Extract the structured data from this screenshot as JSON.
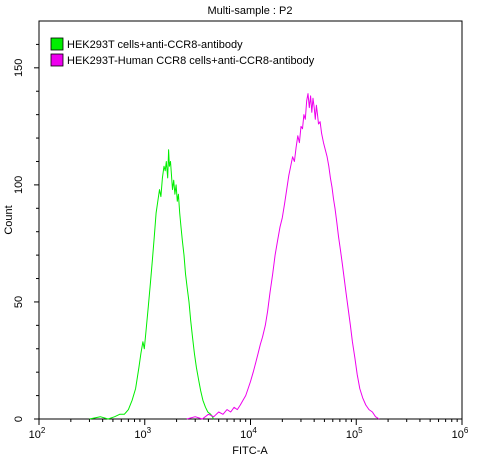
{
  "chart_data": {
    "type": "line",
    "title": "Multi-sample : P2",
    "xlabel": "FITC-A",
    "ylabel": "Count",
    "x_scale": "log",
    "xlim": [
      100,
      1000000
    ],
    "ylim": [
      0,
      170
    ],
    "grid": false,
    "legend_position": "top-left",
    "x_ticks": [
      {
        "value": 100,
        "base": "10",
        "exp": "2"
      },
      {
        "value": 1000,
        "base": "10",
        "exp": "3"
      },
      {
        "value": 10000,
        "base": "10",
        "exp": "4"
      },
      {
        "value": 100000,
        "base": "10",
        "exp": "5"
      },
      {
        "value": 1000000,
        "base": "10",
        "exp": "6"
      }
    ],
    "y_ticks": [
      0,
      50,
      100,
      150
    ],
    "series": [
      {
        "name": "HEK293T cells+anti-CCR8-antibody",
        "color": "#00ee00",
        "points": [
          [
            300,
            0
          ],
          [
            380,
            1
          ],
          [
            450,
            0
          ],
          [
            520,
            1
          ],
          [
            580,
            2
          ],
          [
            640,
            2
          ],
          [
            700,
            4
          ],
          [
            760,
            8
          ],
          [
            820,
            13
          ],
          [
            880,
            22
          ],
          [
            920,
            28
          ],
          [
            960,
            33
          ],
          [
            990,
            30
          ],
          [
            1030,
            38
          ],
          [
            1080,
            48
          ],
          [
            1130,
            58
          ],
          [
            1180,
            68
          ],
          [
            1230,
            78
          ],
          [
            1280,
            88
          ],
          [
            1330,
            93
          ],
          [
            1380,
            98
          ],
          [
            1420,
            95
          ],
          [
            1470,
            103
          ],
          [
            1520,
            108
          ],
          [
            1560,
            106
          ],
          [
            1600,
            110
          ],
          [
            1650,
            103
          ],
          [
            1680,
            115
          ],
          [
            1710,
            108
          ],
          [
            1750,
            110
          ],
          [
            1790,
            104
          ],
          [
            1830,
            98
          ],
          [
            1880,
            102
          ],
          [
            1930,
            96
          ],
          [
            1980,
            100
          ],
          [
            2030,
            93
          ],
          [
            2080,
            96
          ],
          [
            2140,
            88
          ],
          [
            2200,
            82
          ],
          [
            2270,
            76
          ],
          [
            2350,
            70
          ],
          [
            2430,
            62
          ],
          [
            2520,
            56
          ],
          [
            2620,
            50
          ],
          [
            2720,
            42
          ],
          [
            2830,
            35
          ],
          [
            2950,
            28
          ],
          [
            3080,
            22
          ],
          [
            3220,
            17
          ],
          [
            3380,
            12
          ],
          [
            3550,
            8
          ],
          [
            3750,
            5
          ],
          [
            3950,
            3
          ],
          [
            4200,
            2
          ],
          [
            4500,
            0
          ]
        ]
      },
      {
        "name": "HEK293T-Human CCR8 cells+anti-CCR8-antibody",
        "color": "#ee00ee",
        "points": [
          [
            2500,
            0
          ],
          [
            3000,
            1
          ],
          [
            3500,
            0
          ],
          [
            4000,
            2
          ],
          [
            4500,
            1
          ],
          [
            5000,
            3
          ],
          [
            5500,
            2
          ],
          [
            6000,
            4
          ],
          [
            6500,
            3
          ],
          [
            7000,
            5
          ],
          [
            7500,
            4
          ],
          [
            8000,
            6
          ],
          [
            8500,
            8
          ],
          [
            9000,
            10
          ],
          [
            9500,
            13
          ],
          [
            10000,
            16
          ],
          [
            10600,
            20
          ],
          [
            11200,
            24
          ],
          [
            11800,
            28
          ],
          [
            12400,
            32
          ],
          [
            13000,
            35
          ],
          [
            13800,
            40
          ],
          [
            14500,
            46
          ],
          [
            15300,
            54
          ],
          [
            16200,
            62
          ],
          [
            17100,
            70
          ],
          [
            18000,
            76
          ],
          [
            19000,
            82
          ],
          [
            20000,
            86
          ],
          [
            21000,
            92
          ],
          [
            22000,
            98
          ],
          [
            23000,
            104
          ],
          [
            24000,
            108
          ],
          [
            25000,
            112
          ],
          [
            26000,
            110
          ],
          [
            27000,
            116
          ],
          [
            28000,
            121
          ],
          [
            29000,
            118
          ],
          [
            30000,
            125
          ],
          [
            31000,
            124
          ],
          [
            32000,
            130
          ],
          [
            33000,
            128
          ],
          [
            34000,
            136
          ],
          [
            35000,
            139
          ],
          [
            36000,
            133
          ],
          [
            37000,
            138
          ],
          [
            38000,
            131
          ],
          [
            39000,
            137
          ],
          [
            40000,
            133
          ],
          [
            41000,
            128
          ],
          [
            42000,
            134
          ],
          [
            43000,
            130
          ],
          [
            44000,
            126
          ],
          [
            45500,
            127
          ],
          [
            47000,
            122
          ],
          [
            49000,
            118
          ],
          [
            51000,
            115
          ],
          [
            53000,
            112
          ],
          [
            55000,
            108
          ],
          [
            57000,
            103
          ],
          [
            59000,
            99
          ],
          [
            61000,
            94
          ],
          [
            63000,
            90
          ],
          [
            65500,
            84
          ],
          [
            68000,
            78
          ],
          [
            71000,
            72
          ],
          [
            74000,
            66
          ],
          [
            77000,
            60
          ],
          [
            80000,
            54
          ],
          [
            84000,
            47
          ],
          [
            88000,
            40
          ],
          [
            92000,
            33
          ],
          [
            97000,
            26
          ],
          [
            102000,
            19
          ],
          [
            108000,
            13
          ],
          [
            115000,
            9
          ],
          [
            123000,
            6
          ],
          [
            132000,
            4
          ],
          [
            142000,
            3
          ],
          [
            152000,
            1
          ],
          [
            165000,
            0
          ]
        ]
      }
    ]
  }
}
